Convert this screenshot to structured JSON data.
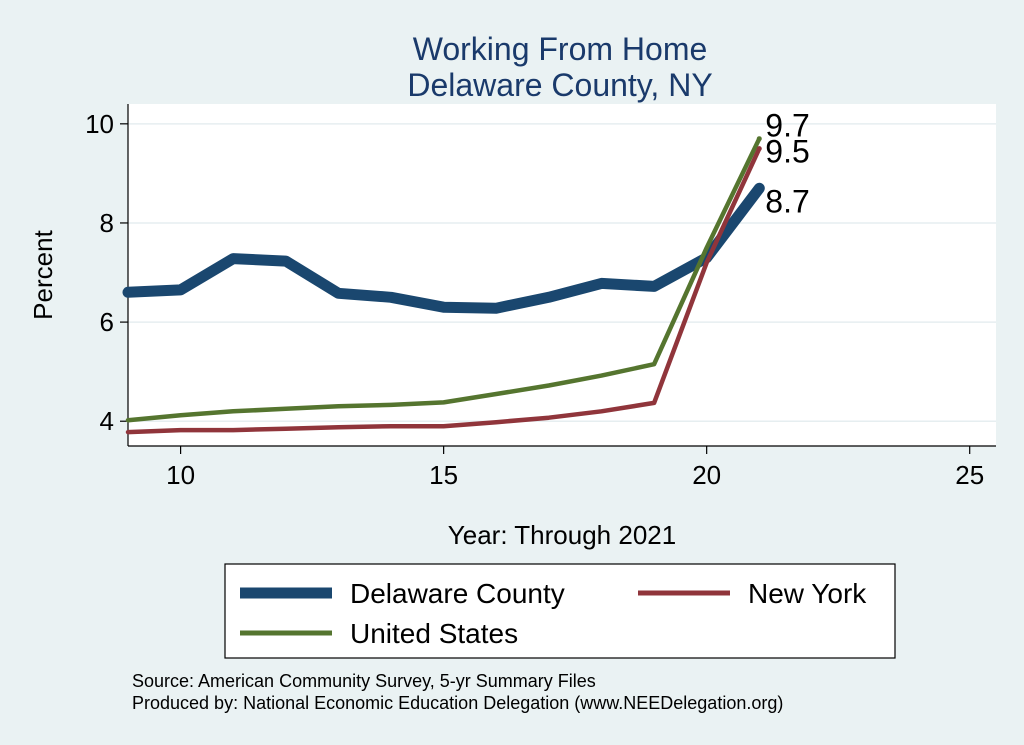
{
  "chart_data": {
    "type": "line",
    "title": [
      "Working From Home",
      "Delaware County, NY"
    ],
    "xlabel": "Year: Through 2021",
    "ylabel": "Percent",
    "xlim": [
      9,
      25.5
    ],
    "ylim": [
      3.5,
      10.4
    ],
    "xticks": [
      10,
      15,
      20,
      25
    ],
    "yticks": [
      4,
      6,
      8,
      10
    ],
    "grid": true,
    "legend_position": "bottom",
    "colors": {
      "background": "#eaf2f3",
      "plot_background": "#ffffff",
      "grid": "#e6eef0",
      "title": "#1a3a6b"
    },
    "x": [
      9,
      10,
      11,
      12,
      13,
      14,
      15,
      16,
      17,
      18,
      19,
      20,
      21
    ],
    "series": [
      {
        "name": "Delaware County",
        "color": "#1a476f",
        "values": [
          6.6,
          6.65,
          7.28,
          7.23,
          6.58,
          6.5,
          6.3,
          6.28,
          6.5,
          6.78,
          6.72,
          7.3,
          8.7
        ],
        "end_label": "8.7"
      },
      {
        "name": "New York",
        "color": "#90353b",
        "values": [
          3.78,
          3.82,
          3.82,
          3.85,
          3.88,
          3.9,
          3.9,
          3.98,
          4.07,
          4.2,
          4.37,
          7.2,
          9.5
        ],
        "end_label": "9.5"
      },
      {
        "name": "United States",
        "color": "#55752f",
        "values": [
          4.02,
          4.12,
          4.2,
          4.25,
          4.3,
          4.33,
          4.38,
          4.55,
          4.72,
          4.92,
          5.15,
          7.5,
          9.7
        ],
        "end_label": "9.7"
      }
    ],
    "source": [
      "Source: American Community Survey, 5-yr Summary Files",
      "Produced by: National Economic Education Delegation (www.NEEDelegation.org)"
    ]
  }
}
